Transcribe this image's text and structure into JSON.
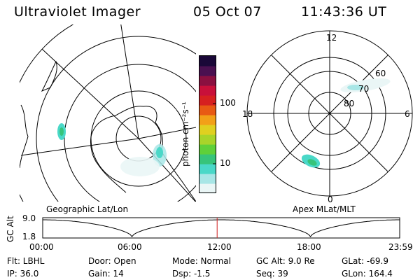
{
  "header": {
    "instrument": "Ultraviolet Imager",
    "date": "05 Oct 07",
    "time": "11:43:36 UT"
  },
  "colorbar": {
    "unit_label": "photon cm⁻²s⁻¹",
    "ticks": [
      "100",
      "10"
    ],
    "scale": "log",
    "colors": [
      "#eaf6f6",
      "#a8e6e6",
      "#4ad8c8",
      "#37c47a",
      "#5fd03a",
      "#a8d42a",
      "#e0d020",
      "#f2a018",
      "#e85a14",
      "#d62020",
      "#c8103a",
      "#8a1040",
      "#4a1050",
      "#1a0838"
    ]
  },
  "geo_panel": {
    "label": "Geographic Lat/Lon"
  },
  "polar_panel": {
    "label": "Apex MLat/MLT",
    "mlt_labels": {
      "top": "12",
      "bottom": "0",
      "left": "18",
      "right": "6"
    },
    "lat_labels": [
      "60",
      "70",
      "80"
    ]
  },
  "altitude_plot": {
    "ylabel": "GC Alt",
    "y_ticks": [
      "9.0",
      "1.8"
    ],
    "x_ticks": [
      "00:00",
      "06:00",
      "12:00",
      "18:00",
      "23:59"
    ],
    "cursor_time": "11:43",
    "cursor_color": "#d02020"
  },
  "status": {
    "filter": "Flt: LBHL",
    "door": "Door: Open",
    "mode": "Mode: Normal",
    "gc_alt": "GC Alt: 9.0 Re",
    "glat": "GLat: -69.9",
    "ip": "IP: 36.0",
    "gain": "Gain: 14",
    "dsp": "Dsp:   -1.5",
    "seq": "Seq: 39",
    "glon": "GLon: 164.4"
  }
}
